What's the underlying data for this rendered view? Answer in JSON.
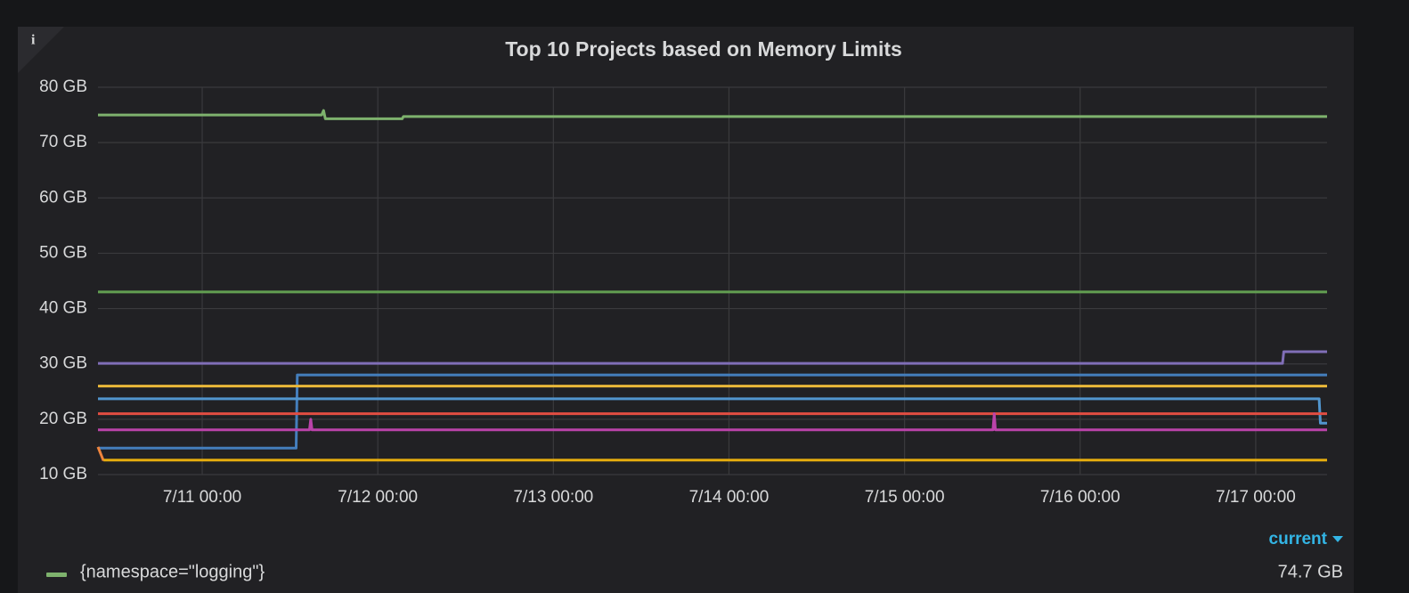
{
  "panel_info": "i",
  "chart_data": {
    "type": "line",
    "title": "Top 10 Projects based on Memory Limits",
    "xlim": [
      "7/10 09:45",
      "7/17 09:45"
    ],
    "xticks": [
      "7/11 00:00",
      "7/12 00:00",
      "7/13 00:00",
      "7/14 00:00",
      "7/15 00:00",
      "7/16 00:00",
      "7/17 00:00"
    ],
    "ylim": [
      10,
      80
    ],
    "yticks": [
      {
        "value": 10,
        "label": "10 GB"
      },
      {
        "value": 20,
        "label": "20 GB"
      },
      {
        "value": 30,
        "label": "30 GB"
      },
      {
        "value": 40,
        "label": "40 GB"
      },
      {
        "value": 50,
        "label": "50 GB"
      },
      {
        "value": 60,
        "label": "60 GB"
      },
      {
        "value": 70,
        "label": "70 GB"
      },
      {
        "value": 80,
        "label": "80 GB"
      }
    ],
    "grid": true,
    "series": [
      {
        "name": "{namespace=\"logging\"}",
        "color": "#7eb26d",
        "x": [
          "7/10 09:45",
          "7/11 16:20",
          "7/11 16:35",
          "7/11 16:50",
          "7/12 03:20",
          "7/12 03:30",
          "7/17 09:45"
        ],
        "values": [
          75,
          75,
          75.8,
          74.3,
          74.3,
          74.7,
          74.7
        ]
      },
      {
        "color": "#629e51",
        "x": [
          "7/10 09:45",
          "7/17 09:45"
        ],
        "values": [
          43,
          43
        ]
      },
      {
        "color": "#806eb7",
        "x": [
          "7/10 09:45",
          "7/17 03:40",
          "7/17 03:50",
          "7/17 09:45"
        ],
        "values": [
          30.1,
          30.1,
          32.2,
          32.2
        ]
      },
      {
        "color": "#447ebc",
        "x": [
          "7/10 09:45",
          "7/11 12:50",
          "7/11 13:00",
          "7/17 09:45"
        ],
        "values": [
          14.8,
          14.8,
          28,
          28
        ]
      },
      {
        "color": "#eab839",
        "x": [
          "7/10 09:45",
          "7/17 09:45"
        ],
        "values": [
          26,
          26
        ]
      },
      {
        "color": "#5195ce",
        "x": [
          "7/10 09:45",
          "7/17 08:40",
          "7/17 08:50",
          "7/17 09:45"
        ],
        "values": [
          23.7,
          23.7,
          19.3,
          19.3
        ]
      },
      {
        "color": "#e24d42",
        "x": [
          "7/10 09:45",
          "7/17 09:45"
        ],
        "values": [
          21,
          21
        ]
      },
      {
        "color": "#ba43a9",
        "x": [
          "7/10 09:45",
          "7/11 14:40",
          "7/11 14:50",
          "7/11 15:00",
          "7/15 12:05",
          "7/15 12:15",
          "7/15 12:25",
          "7/17 09:45"
        ],
        "values": [
          18.1,
          18.1,
          20,
          18.1,
          18.1,
          21,
          18.1,
          18.1
        ]
      },
      {
        "color": "#ef843c",
        "x": [
          "7/10 09:45",
          "7/10 10:30"
        ],
        "values": [
          15,
          12.5
        ]
      },
      {
        "color": "#e5ac0e",
        "x": [
          "7/10 10:30",
          "7/17 09:45"
        ],
        "values": [
          12.6,
          12.6
        ]
      }
    ],
    "legend": {
      "header": "current",
      "values": [
        74.7
      ],
      "value_labels": [
        "74.7 GB"
      ]
    }
  }
}
